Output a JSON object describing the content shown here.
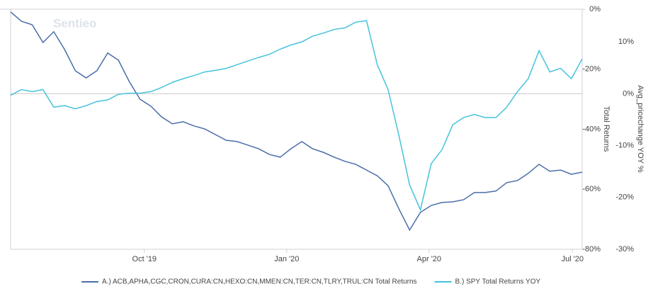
{
  "chart_data": {
    "type": "line",
    "watermark": "Sentieo",
    "x": [
      0,
      1,
      2,
      3,
      4,
      5,
      6,
      7,
      8,
      9,
      10,
      11,
      12,
      13,
      14,
      15,
      16,
      17,
      18,
      19,
      20,
      21,
      22,
      23,
      24,
      25,
      26,
      27,
      28,
      29,
      30,
      31,
      32,
      33,
      34,
      35,
      36,
      37,
      38,
      39,
      40,
      41,
      42,
      43,
      44,
      45,
      46,
      47,
      48,
      49,
      50,
      51,
      52,
      53
    ],
    "xlim": [
      0,
      53
    ],
    "xticks": [
      {
        "value": 12.4,
        "label": "Oct '19"
      },
      {
        "value": 25.6,
        "label": "Jan '20"
      },
      {
        "value": 38.8,
        "label": "Apr '20"
      },
      {
        "value": 52.1,
        "label": "Jul '20"
      }
    ],
    "ylim": [
      -80,
      0
    ],
    "yticks": [
      {
        "value": 0,
        "label": "0%"
      },
      {
        "value": -20,
        "label": "-20%"
      },
      {
        "value": -40,
        "label": "-40%"
      },
      {
        "value": -60,
        "label": "-60%"
      },
      {
        "value": -80,
        "label": "-80%"
      }
    ],
    "ylabel": "Total Returns",
    "y2lim": [
      -30,
      16.3
    ],
    "y2ticks": [
      {
        "value": 10,
        "label": "10%"
      },
      {
        "value": 0,
        "label": "0%"
      },
      {
        "value": -10,
        "label": "-10%"
      },
      {
        "value": -20,
        "label": "-20%"
      },
      {
        "value": -30,
        "label": "-30%"
      }
    ],
    "y2label": "Avg_pricechange YOY %",
    "series": [
      {
        "name": "A.) ACB,APHA,CGC,CRON,CURA:CN,HEXO:CN,MMEN:CN,TER:CN,TLRY,TRUL:CN Total Returns",
        "color": "#4a6ea8",
        "values": [
          -0.9,
          -4.0,
          -5.2,
          -11.1,
          -7.5,
          -13.4,
          -20.5,
          -22.9,
          -20.5,
          -14.6,
          -17.0,
          -24.1,
          -30.0,
          -32.3,
          -35.9,
          -38.2,
          -37.5,
          -38.9,
          -39.9,
          -41.8,
          -43.7,
          -44.1,
          -45.3,
          -46.5,
          -48.4,
          -49.3,
          -46.5,
          -44.1,
          -46.5,
          -47.7,
          -49.3,
          -50.7,
          -51.7,
          -53.6,
          -55.5,
          -58.8,
          -66.5,
          -73.6,
          -67.7,
          -65.4,
          -64.4,
          -64.2,
          -63.5,
          -61.1,
          -61.1,
          -60.6,
          -57.8,
          -57.1,
          -54.7,
          -51.7,
          -54.0,
          -53.6,
          -55.0,
          -54.3
        ]
      },
      {
        "name": "B.) SPY Total Returns YOY",
        "color": "#45c3dc",
        "axis": "y2",
        "values": [
          -0.3,
          0.8,
          0.4,
          0.8,
          -2.6,
          -2.3,
          -2.9,
          -2.3,
          -1.5,
          -1.2,
          -0.1,
          0.1,
          0.1,
          0.4,
          1.2,
          2.2,
          2.9,
          3.5,
          4.2,
          4.5,
          4.9,
          5.6,
          6.3,
          7.0,
          7.6,
          8.6,
          9.4,
          10.0,
          11.1,
          11.7,
          12.4,
          12.7,
          13.8,
          14.1,
          5.6,
          0.8,
          -8.0,
          -17.6,
          -22.4,
          -13.5,
          -10.8,
          -6.0,
          -4.6,
          -4.0,
          -4.6,
          -4.6,
          -2.6,
          0.4,
          2.9,
          8.3,
          4.2,
          4.9,
          2.9,
          6.7
        ]
      }
    ]
  }
}
